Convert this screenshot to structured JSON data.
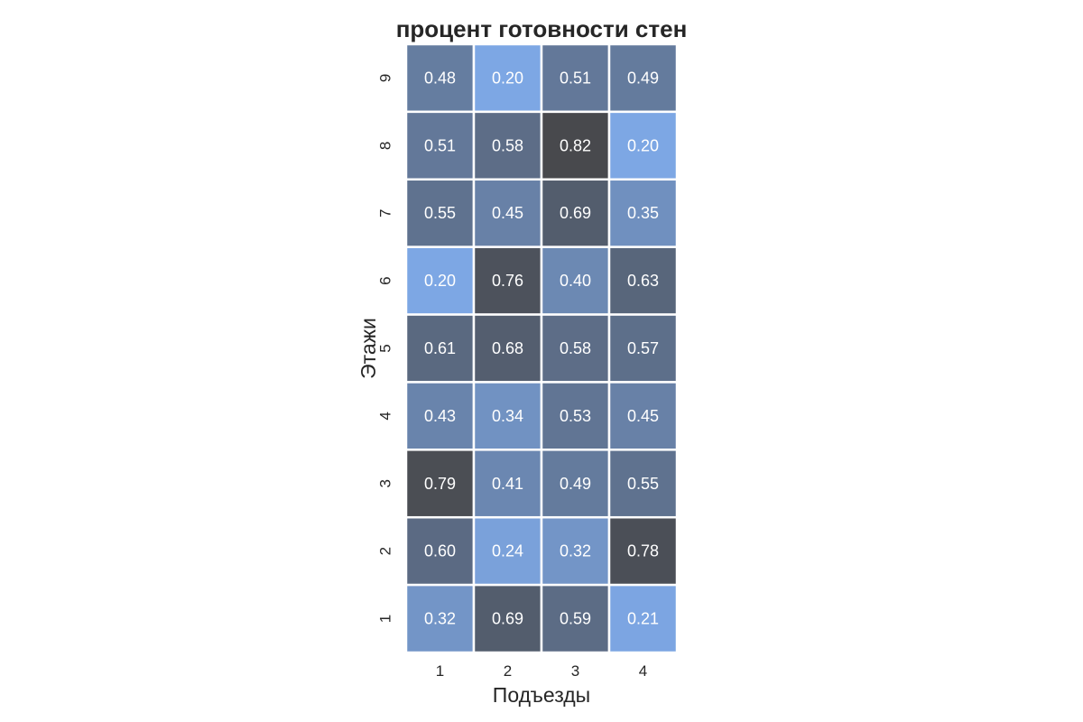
{
  "chart_data": {
    "type": "heatmap",
    "title": "процент готовности стен",
    "xlabel": "Подъезды",
    "ylabel": "Этажи",
    "x_categories": [
      "1",
      "2",
      "3",
      "4"
    ],
    "y_categories": [
      "9",
      "8",
      "7",
      "6",
      "5",
      "4",
      "3",
      "2",
      "1"
    ],
    "values": [
      [
        0.48,
        0.2,
        0.51,
        0.49
      ],
      [
        0.51,
        0.58,
        0.82,
        0.2
      ],
      [
        0.55,
        0.45,
        0.69,
        0.35
      ],
      [
        0.2,
        0.76,
        0.4,
        0.63
      ],
      [
        0.61,
        0.68,
        0.58,
        0.57
      ],
      [
        0.43,
        0.34,
        0.53,
        0.45
      ],
      [
        0.79,
        0.41,
        0.49,
        0.55
      ],
      [
        0.6,
        0.24,
        0.32,
        0.78
      ],
      [
        0.32,
        0.69,
        0.59,
        0.21
      ]
    ],
    "value_format": "0.00",
    "color_range": [
      0.2,
      0.82
    ],
    "colormap": {
      "low": "#7da7e4",
      "high": "#48494d"
    },
    "grid_line_color": "#ffffff",
    "colorbar": false
  }
}
